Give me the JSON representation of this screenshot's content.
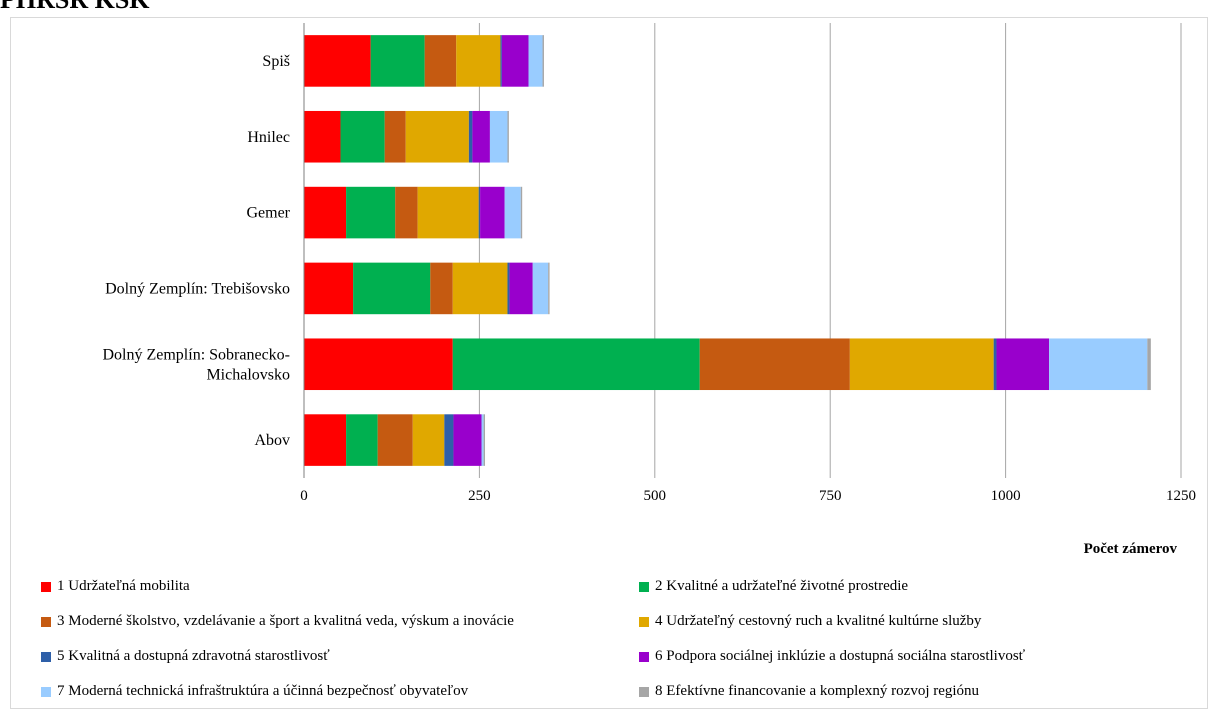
{
  "header": {
    "title": "PHRSR KSK"
  },
  "chart_data": {
    "type": "bar",
    "orientation": "horizontal",
    "stacked": true,
    "title": "",
    "xlabel": "Počet zámerov",
    "ylabel": "",
    "xlim": [
      0,
      1250
    ],
    "x_ticks": [
      0,
      250,
      500,
      750,
      1000,
      1250
    ],
    "grid": true,
    "legend_position": "bottom",
    "categories": [
      "Spiš",
      "Hnilec",
      "Gemer",
      "Dolný Zemplín: Trebišovsko",
      "Dolný Zemplín: Sobranecko-Michalovsko",
      "Abov"
    ],
    "category_lines": [
      [
        "Spiš"
      ],
      [
        "Hnilec"
      ],
      [
        "Gemer"
      ],
      [
        "Dolný Zemplín: Trebišovsko"
      ],
      [
        "Dolný Zemplín: Sobranecko-",
        "Michalovsko"
      ],
      [
        "Abov"
      ]
    ],
    "series": [
      {
        "name": "1 Udržateľná mobilita",
        "color": "#ff0000",
        "values": [
          95,
          52,
          60,
          70,
          212,
          60
        ]
      },
      {
        "name": "2 Kvalitné a udržateľné životné prostredie",
        "color": "#00b050",
        "values": [
          77,
          63,
          70,
          110,
          352,
          45
        ]
      },
      {
        "name": "3 Moderné školstvo, vzdelávanie a šport a kvalitná veda, výskum a inovácie",
        "color": "#c55a11",
        "values": [
          45,
          30,
          32,
          32,
          214,
          50
        ]
      },
      {
        "name": "4 Udržateľný cestovný ruch a kvalitné kultúrne služby",
        "color": "#e0a800",
        "values": [
          63,
          90,
          87,
          78,
          205,
          45
        ]
      },
      {
        "name": "5 Kvalitná a dostupná zdravotná starostlivosť",
        "color": "#2e5fa8",
        "values": [
          2,
          5,
          2,
          3,
          4,
          13
        ]
      },
      {
        "name": "6 Podpora sociálnej inklúzie a dostupná sociálna starostlivosť",
        "color": "#9900cc",
        "values": [
          38,
          25,
          35,
          33,
          75,
          40
        ]
      },
      {
        "name": "7 Moderná technická infraštruktúra a účinná bezpečnosť obyvateľov",
        "color": "#99ccff",
        "values": [
          20,
          25,
          23,
          22,
          140,
          3
        ]
      },
      {
        "name": "8 Efektívne financovanie a komplexný rozvoj regiónu",
        "color": "#a6a6a6",
        "values": [
          2,
          2,
          2,
          2,
          5,
          2
        ]
      }
    ]
  }
}
